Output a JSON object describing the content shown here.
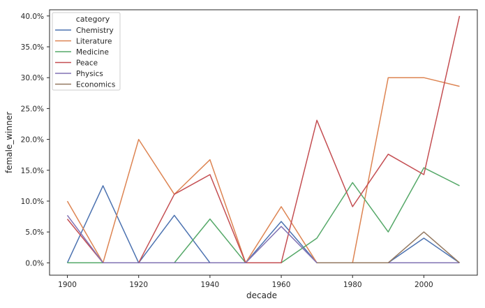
{
  "chart_data": {
    "type": "line",
    "title": "",
    "xlabel": "decade",
    "ylabel": "female_winner",
    "xlim": [
      1895,
      2015
    ],
    "ylim": [
      -0.02,
      0.41
    ],
    "x_ticks": [
      1900,
      1920,
      1940,
      1960,
      1980,
      2000
    ],
    "y_ticks": [
      0,
      0.05,
      0.1,
      0.15,
      0.2,
      0.25,
      0.3,
      0.35,
      0.4
    ],
    "y_tick_labels": [
      "0.0%",
      "5.0%",
      "10.0%",
      "15.0%",
      "20.0%",
      "25.0%",
      "30.0%",
      "35.0%",
      "40.0%"
    ],
    "grid": false,
    "legend": {
      "title": "category",
      "placement": "upper-left"
    },
    "x": [
      1900,
      1910,
      1920,
      1930,
      1940,
      1950,
      1960,
      1970,
      1980,
      1990,
      2000,
      2010
    ],
    "series": [
      {
        "name": "Chemistry",
        "color": "#4c72b0",
        "values": [
          0,
          0.125,
          0,
          0.077,
          0,
          0,
          0.067,
          0,
          0,
          0,
          0.04,
          0
        ]
      },
      {
        "name": "Literature",
        "color": "#dd8452",
        "values": [
          0.1,
          0,
          0.2,
          0.111,
          0.167,
          0,
          0.091,
          0,
          0,
          0.3,
          0.3,
          0.286
        ]
      },
      {
        "name": "Medicine",
        "color": "#55a868",
        "values": [
          0,
          0,
          0,
          0,
          0.071,
          0,
          0,
          0.04,
          0.13,
          0.05,
          0.154,
          0.125
        ]
      },
      {
        "name": "Peace",
        "color": "#c44e52",
        "values": [
          0.071,
          0,
          0,
          0.111,
          0.143,
          0,
          0,
          0.231,
          0.091,
          0.176,
          0.143,
          0.4
        ]
      },
      {
        "name": "Physics",
        "color": "#8172b3",
        "values": [
          0.077,
          0,
          0,
          0,
          0,
          0,
          0.059,
          0,
          0,
          0,
          0,
          0
        ]
      },
      {
        "name": "Economics",
        "color": "#937860",
        "values": [
          null,
          null,
          null,
          null,
          null,
          null,
          null,
          0,
          0,
          0,
          0.05,
          0
        ]
      }
    ]
  }
}
